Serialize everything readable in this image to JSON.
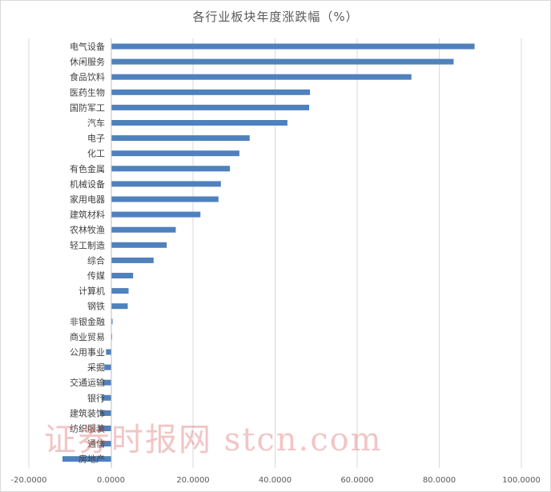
{
  "chart_data": {
    "type": "bar",
    "orientation": "horizontal",
    "title": "各行业板块年度涨跌幅（%）",
    "categories": [
      "电气设备",
      "休闲服务",
      "食品饮料",
      "医药生物",
      "国防军工",
      "汽车",
      "电子",
      "化工",
      "有色金属",
      "机械设备",
      "家用电器",
      "建筑材料",
      "农林牧渔",
      "轻工制造",
      "综合",
      "传媒",
      "计算机",
      "钢铁",
      "非银金融",
      "商业贸易",
      "公用事业",
      "采掘",
      "交通运输",
      "银行",
      "建筑装饰",
      "纺织服装",
      "通信",
      "房地产"
    ],
    "values": [
      88.6,
      83.5,
      73.2,
      48.5,
      48.3,
      43.0,
      33.8,
      31.3,
      29.0,
      26.8,
      26.2,
      21.8,
      15.8,
      13.6,
      10.4,
      5.4,
      4.3,
      4.1,
      0.4,
      0.3,
      -1.2,
      -1.6,
      -2.0,
      -2.3,
      -2.6,
      -3.0,
      -2.5,
      -11.8
    ],
    "xlim": [
      -20,
      100
    ],
    "xticks": [
      "-20.0000",
      "0.0000",
      "20.0000",
      "40.0000",
      "60.0000",
      "80.0000",
      "100.0000"
    ],
    "grid": true,
    "bar_color": "#4f81bd"
  },
  "watermark": "证券时报网 stcn.com"
}
